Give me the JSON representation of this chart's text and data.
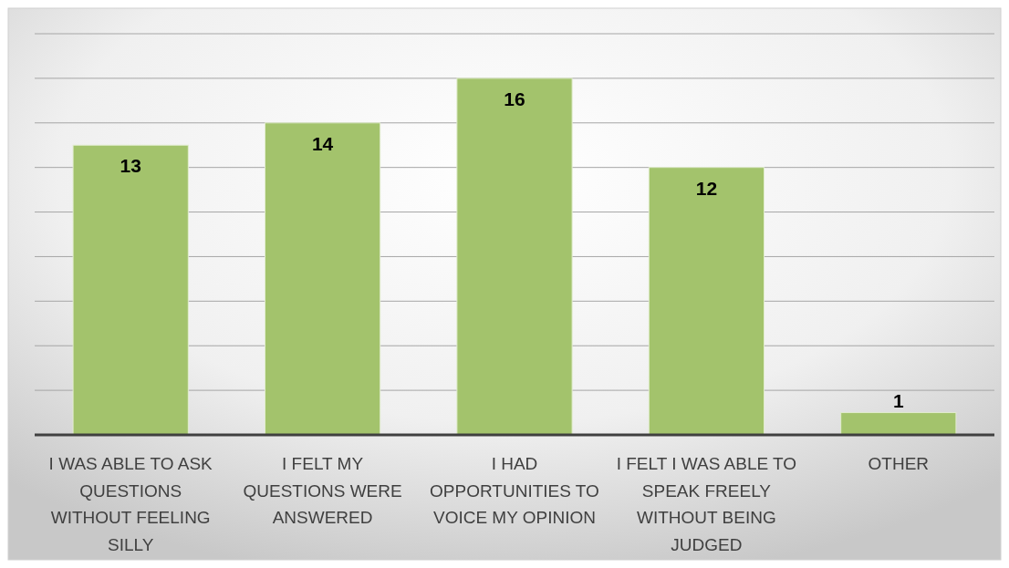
{
  "chart_data": {
    "type": "bar",
    "categories": [
      "I WAS ABLE TO ASK QUESTIONS WITHOUT FEELING SILLY",
      "I FELT MY QUESTIONS WERE ANSWERED",
      "I HAD OPPORTUNITIES TO VOICE MY OPINION",
      "I FELT I WAS ABLE TO SPEAK FREELY WITHOUT BEING JUDGED",
      "OTHER"
    ],
    "values": [
      13,
      14,
      16,
      12,
      1
    ],
    "color": "#a3c36c",
    "ylim": [
      0,
      18
    ],
    "yticks": [
      {
        "value": 0,
        "label": null
      },
      {
        "value": 2,
        "label": null
      },
      {
        "value": 4,
        "label": null
      },
      {
        "value": 6,
        "label": null
      },
      {
        "value": 8,
        "label": null
      },
      {
        "value": 10,
        "label": null
      },
      {
        "value": 12,
        "label": null
      },
      {
        "value": 14,
        "label": null
      },
      {
        "value": 16,
        "label": null
      },
      {
        "value": 18,
        "label": null
      }
    ],
    "tick_labels": "x",
    "grid": "y",
    "data_labels": true
  }
}
